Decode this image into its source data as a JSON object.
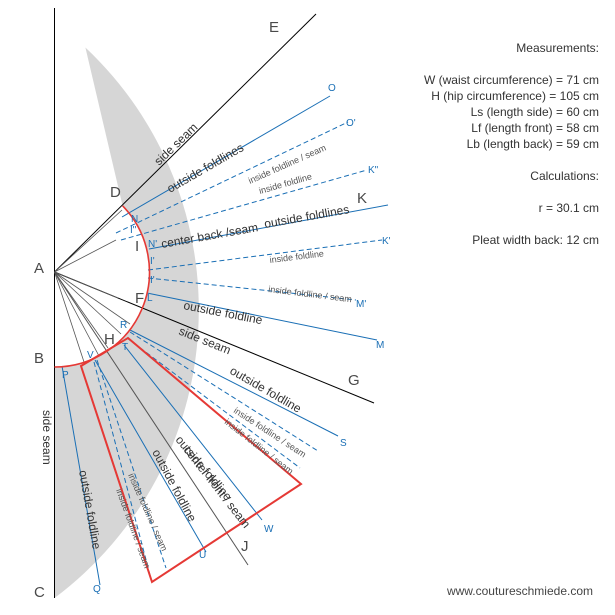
{
  "points": {
    "A": "A",
    "B": "B",
    "C": "C",
    "D": "D",
    "E": "E",
    "F": "F",
    "G": "G",
    "H": "H",
    "I": "I",
    "J": "J",
    "K": "K"
  },
  "blue_points": {
    "O": "O",
    "O_prime": "O'",
    "K_double": "K\"",
    "K_prime": "K'",
    "M_prime": "M'",
    "M": "M",
    "N": "N",
    "I_double": "I\"",
    "N_prime": "N'",
    "I_prime_upper": "I'",
    "I_prime": "I'",
    "L": "L",
    "R": "R",
    "T": "T",
    "V": "V",
    "P": "P",
    "S": "S",
    "W": "W",
    "U": "U",
    "Q": "Q"
  },
  "labels": {
    "side_seam": "side seam",
    "outside_foldlines": "outside foldlines",
    "outside_foldline": "outside foldline",
    "inside_foldline": "inside foldline",
    "inside_foldline_seam": "inside foldline / seam",
    "center_back_seam": "center back /seam",
    "center_front_seam": "center front / seam"
  },
  "panel": {
    "measurements_title": "Measurements:",
    "w": "W (waist circumference) = 71 cm",
    "h": "H (hip circumference) = 105 cm",
    "ls": "Ls (length side) = 60 cm",
    "lf": "Lf (length front) = 58 cm",
    "lb": "Lb (length back) = 59 cm",
    "calculations_title": "Calculations:",
    "r": "r = 30.1 cm",
    "pleat": "Pleat width back: 12 cm"
  },
  "footer": "www.coutureschmiede.com",
  "colors": {
    "fill": "#d6d6d6",
    "blue": "#1a6fb5",
    "red": "#e53935",
    "black": "#000000"
  }
}
